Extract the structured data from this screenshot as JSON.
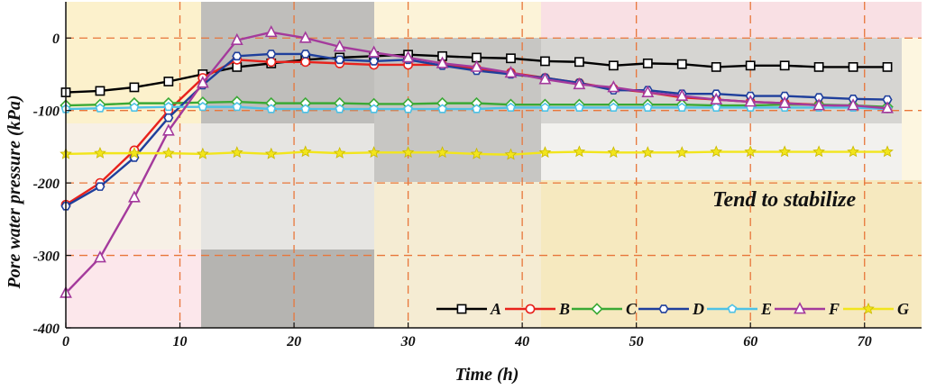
{
  "chart_data": {
    "type": "line",
    "xlabel": "Time (h)",
    "ylabel": "Pore water pressure (kPa)",
    "xlim": [
      0,
      75
    ],
    "ylim": [
      -400,
      50
    ],
    "xticks": [
      0,
      10,
      20,
      30,
      40,
      50,
      60,
      70
    ],
    "yticks": [
      0,
      -100,
      -200,
      -300,
      -400
    ],
    "grid": "dashed orange",
    "legend_position": "bottom-right",
    "annotation": "Tend to stabilize",
    "x": [
      0,
      3,
      6,
      9,
      12,
      15,
      18,
      21,
      24,
      27,
      30,
      33,
      36,
      39,
      42,
      45,
      48,
      51,
      54,
      57,
      60,
      63,
      66,
      69,
      72
    ],
    "series": [
      {
        "name": "A",
        "color": "#000000",
        "marker": "square",
        "values": [
          -75,
          -73,
          -68,
          -60,
          -50,
          -40,
          -35,
          -30,
          -27,
          -25,
          -23,
          -25,
          -27,
          -28,
          -32,
          -33,
          -38,
          -35,
          -36,
          -40,
          -38,
          -38,
          -40,
          -40,
          -40
        ]
      },
      {
        "name": "B",
        "color": "#e8221c",
        "marker": "circle",
        "values": [
          -230,
          -200,
          -155,
          -100,
          -55,
          -30,
          -33,
          -33,
          -35,
          -37,
          -37,
          -37,
          -42,
          -48,
          -55,
          -62,
          -70,
          -75,
          -82,
          -85,
          -88,
          -90,
          -92,
          -95,
          -97
        ]
      },
      {
        "name": "C",
        "color": "#3aa935",
        "marker": "diamond",
        "values": [
          -93,
          -92,
          -90,
          -90,
          -89,
          -88,
          -90,
          -90,
          -90,
          -91,
          -91,
          -90,
          -90,
          -92,
          -92,
          -92,
          -92,
          -92,
          -92,
          -93,
          -93,
          -92,
          -92,
          -93,
          -95
        ]
      },
      {
        "name": "D",
        "color": "#1f3f9c",
        "marker": "hexagon",
        "values": [
          -232,
          -205,
          -165,
          -110,
          -65,
          -25,
          -22,
          -22,
          -30,
          -32,
          -30,
          -38,
          -45,
          -50,
          -55,
          -62,
          -72,
          -72,
          -77,
          -77,
          -80,
          -80,
          -82,
          -84,
          -85
        ]
      },
      {
        "name": "E",
        "color": "#4ec2e6",
        "marker": "pentagon",
        "values": [
          -98,
          -97,
          -96,
          -95,
          -95,
          -95,
          -98,
          -98,
          -98,
          -98,
          -98,
          -98,
          -98,
          -96,
          -96,
          -96,
          -96,
          -96,
          -96,
          -96,
          -96,
          -96,
          -96,
          -96,
          -98
        ]
      },
      {
        "name": "F",
        "color": "#a43a9c",
        "marker": "triangle",
        "values": [
          -352,
          -303,
          -220,
          -128,
          -62,
          -3,
          8,
          0,
          -12,
          -20,
          -27,
          -35,
          -40,
          -48,
          -57,
          -64,
          -68,
          -75,
          -80,
          -85,
          -88,
          -90,
          -93,
          -93,
          -97
        ]
      },
      {
        "name": "G",
        "color": "#f2e51c",
        "marker": "star",
        "values": [
          -160,
          -159,
          -159,
          -159,
          -160,
          -158,
          -160,
          -157,
          -159,
          -158,
          -158,
          -158,
          -160,
          -161,
          -158,
          -157,
          -158,
          -158,
          -158,
          -157,
          -157,
          -157,
          -157,
          -157,
          -157
        ]
      }
    ]
  }
}
